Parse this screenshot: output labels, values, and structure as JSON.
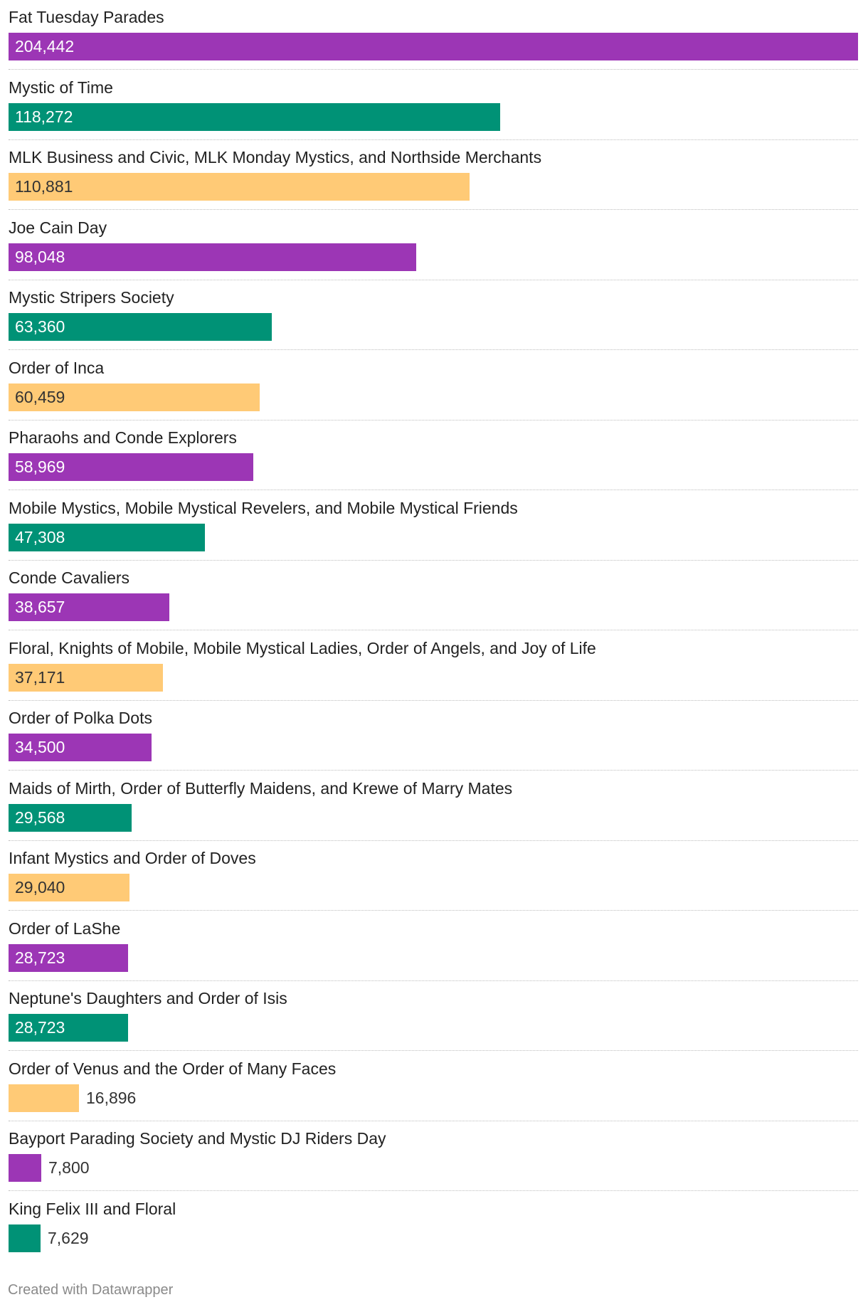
{
  "chart_data": {
    "type": "bar",
    "orientation": "horizontal",
    "colors": [
      "#9c36b5",
      "#009276",
      "#ffca76"
    ],
    "categories": [
      "Fat Tuesday Parades",
      "Mystic of Time",
      "MLK Business and Civic, MLK Monday Mystics, and Northside Merchants",
      "Joe Cain Day",
      "Mystic Stripers Society",
      "Order of Inca",
      "Pharaohs and Conde Explorers",
      "Mobile Mystics, Mobile Mystical Revelers, and Mobile Mystical Friends",
      "Conde Cavaliers",
      "Floral, Knights of Mobile, Mobile Mystical Ladies, Order of Angels, and Joy of Life",
      "Order of Polka Dots",
      "Maids of Mirth, Order of Butterfly Maidens, and Krewe of Marry Mates",
      "Infant Mystics and Order of Doves",
      "Order of LaShe",
      "Neptune's Daughters and Order of Isis",
      "Order of Venus and the Order of Many Faces",
      "Bayport Parading Society and Mystic DJ Riders Day",
      "King Felix III and Floral"
    ],
    "values": [
      204442,
      118272,
      110881,
      98048,
      63360,
      60459,
      58969,
      47308,
      38657,
      37171,
      34500,
      29568,
      29040,
      28723,
      28723,
      16896,
      7800,
      7629
    ],
    "value_labels": [
      "204,442",
      "118,272",
      "110,881",
      "98,048",
      "63,360",
      "60,459",
      "58,969",
      "47,308",
      "38,657",
      "37,171",
      "34,500",
      "29,568",
      "29,040",
      "28,723",
      "28,723",
      "16,896",
      "7,800",
      "7,629"
    ],
    "bar_colors": [
      "#9c36b5",
      "#009276",
      "#ffca76",
      "#9c36b5",
      "#009276",
      "#ffca76",
      "#9c36b5",
      "#009276",
      "#9c36b5",
      "#ffca76",
      "#9c36b5",
      "#009276",
      "#ffca76",
      "#9c36b5",
      "#009276",
      "#ffca76",
      "#9c36b5",
      "#009276"
    ],
    "xlim": [
      0,
      204442
    ],
    "grid": false,
    "legend": "none"
  },
  "footer": {
    "credit": "Created with Datawrapper"
  }
}
